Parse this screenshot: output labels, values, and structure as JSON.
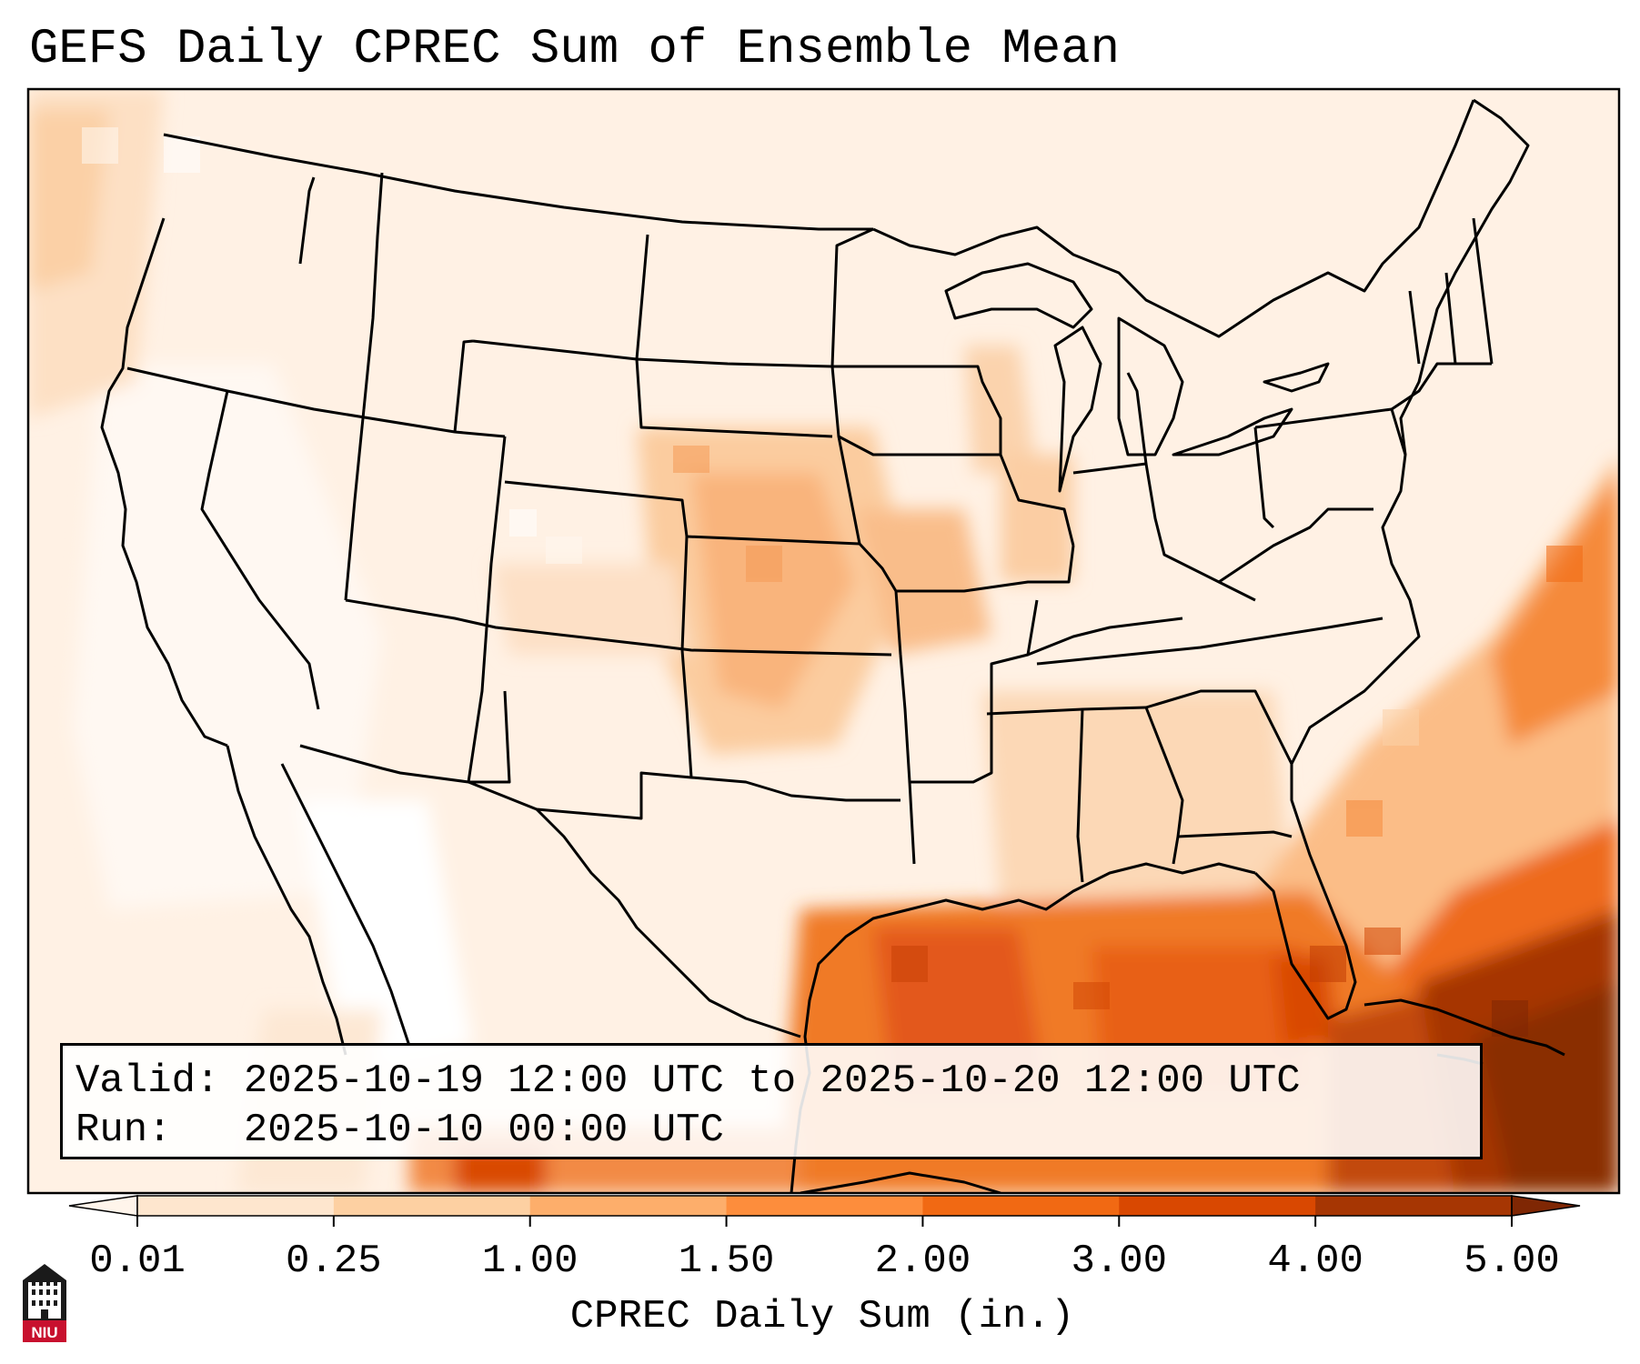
{
  "title": "GEFS Daily CPREC Sum of Ensemble Mean",
  "info": {
    "valid_label": "Valid:",
    "valid_value": "2025-10-19 12:00 UTC to 2025-10-20 12:00 UTC",
    "run_label": "Run:",
    "run_value": "2025-10-10 00:00 UTC"
  },
  "colorbar": {
    "label": "CPREC Daily Sum (in.)",
    "ticks": [
      "0.01",
      "0.25",
      "1.00",
      "1.50",
      "2.00",
      "3.00",
      "4.00",
      "5.00"
    ],
    "colors": [
      "#fff5eb",
      "#fee6ce",
      "#fdd0a2",
      "#fdae6b",
      "#fd8d3c",
      "#f16913",
      "#d94801",
      "#a63603",
      "#7f2704"
    ]
  },
  "map": {
    "variable": "convective precipitation daily sum",
    "region": "Continental United States",
    "heavy_precip_regions": [
      "Gulf of Mexico",
      "Florida",
      "Atlantic off Southeast coast",
      "Caribbean / Cuba"
    ]
  },
  "logo": {
    "text": "NIU",
    "icon": "niu-logo-icon"
  }
}
